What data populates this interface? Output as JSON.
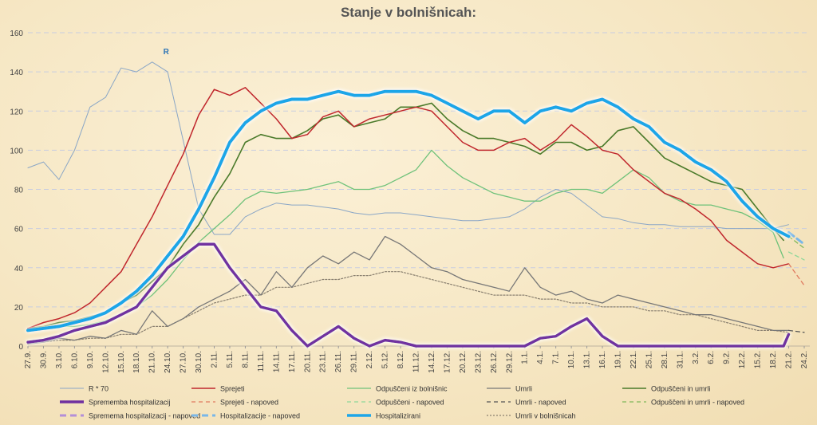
{
  "chart_data": {
    "type": "line",
    "title": "Stanje v bolnišnicah:",
    "ylim": [
      0,
      160
    ],
    "yticks": [
      0,
      20,
      40,
      60,
      80,
      100,
      120,
      140,
      160
    ],
    "x_start": "2020-09-27",
    "x_tick_labels": [
      "27.9.",
      "30.9.",
      "3.10.",
      "6.10.",
      "9.10.",
      "12.10.",
      "15.10.",
      "18.10.",
      "21.10.",
      "24.10.",
      "27.10.",
      "30.10.",
      "2.11.",
      "5.11.",
      "8.11.",
      "11.11.",
      "14.11.",
      "17.11.",
      "20.11.",
      "23.11.",
      "26.11.",
      "29.11.",
      "2.12.",
      "5.12.",
      "8.12.",
      "11.12.",
      "14.12.",
      "17.12.",
      "20.12.",
      "23.12.",
      "26.12.",
      "29.12.",
      "1.1.",
      "4.1.",
      "7.1.",
      "10.1.",
      "13.1.",
      "16.1.",
      "19.1.",
      "22.1.",
      "25.1.",
      "28.1.",
      "31.1.",
      "3.2.",
      "6.2.",
      "9.2.",
      "12.2.",
      "15.2.",
      "18.2.",
      "21.2.",
      "24.2."
    ],
    "annotation": "R",
    "grid": true,
    "legend_placement": "bottom",
    "series": [
      {
        "name": "R * 70",
        "color": "#8aa6c6",
        "width": 1,
        "dash": "",
        "x": [
          "2020-09-27",
          "2020-09-30",
          "2020-10-03",
          "2020-10-06",
          "2020-10-09",
          "2020-10-12",
          "2020-10-15",
          "2020-10-18",
          "2020-10-21",
          "2020-10-24",
          "2020-10-27",
          "2020-10-30",
          "2020-11-02",
          "2020-11-05",
          "2020-11-08",
          "2020-11-11",
          "2020-11-14",
          "2020-11-17",
          "2020-11-20",
          "2020-11-23",
          "2020-11-26",
          "2020-11-29",
          "2020-12-02",
          "2020-12-05",
          "2020-12-08",
          "2020-12-11",
          "2020-12-14",
          "2020-12-17",
          "2020-12-20",
          "2020-12-23",
          "2020-12-26",
          "2020-12-29",
          "2021-01-01",
          "2021-01-04",
          "2021-01-07",
          "2021-01-10",
          "2021-01-13",
          "2021-01-16",
          "2021-01-19",
          "2021-01-22",
          "2021-01-25",
          "2021-01-28",
          "2021-01-31",
          "2021-02-03",
          "2021-02-06",
          "2021-02-09",
          "2021-02-12",
          "2021-02-15",
          "2021-02-18",
          "2021-02-21"
        ],
        "values": [
          91,
          94,
          85,
          100,
          122,
          127,
          142,
          140,
          145,
          140,
          105,
          70,
          57,
          57,
          66,
          70,
          73,
          72,
          72,
          71,
          70,
          68,
          67,
          68,
          68,
          67,
          66,
          65,
          64,
          64,
          65,
          66,
          70,
          76,
          80,
          78,
          72,
          66,
          65,
          63,
          62,
          62,
          61,
          61,
          61,
          60,
          60,
          60,
          60,
          62
        ]
      },
      {
        "name": "Sprejeti",
        "color": "#c0272d",
        "width": 1.5,
        "dash": "",
        "x": [
          "2020-09-27",
          "2020-09-30",
          "2020-10-03",
          "2020-10-06",
          "2020-10-09",
          "2020-10-12",
          "2020-10-15",
          "2020-10-18",
          "2020-10-21",
          "2020-10-24",
          "2020-10-27",
          "2020-10-30",
          "2020-11-02",
          "2020-11-05",
          "2020-11-08",
          "2020-11-11",
          "2020-11-14",
          "2020-11-17",
          "2020-11-20",
          "2020-11-23",
          "2020-11-26",
          "2020-11-29",
          "2020-12-02",
          "2020-12-05",
          "2020-12-08",
          "2020-12-11",
          "2020-12-14",
          "2020-12-17",
          "2020-12-20",
          "2020-12-23",
          "2020-12-26",
          "2020-12-29",
          "2021-01-01",
          "2021-01-04",
          "2021-01-07",
          "2021-01-10",
          "2021-01-13",
          "2021-01-16",
          "2021-01-19",
          "2021-01-22",
          "2021-01-25",
          "2021-01-28",
          "2021-01-31",
          "2021-02-03",
          "2021-02-06",
          "2021-02-09",
          "2021-02-12",
          "2021-02-15",
          "2021-02-18",
          "2021-02-21"
        ],
        "values": [
          9,
          12,
          14,
          17,
          22,
          30,
          38,
          52,
          66,
          82,
          98,
          118,
          131,
          128,
          132,
          124,
          116,
          106,
          108,
          117,
          120,
          112,
          116,
          118,
          120,
          122,
          120,
          112,
          104,
          100,
          100,
          104,
          106,
          100,
          105,
          113,
          107,
          100,
          98,
          90,
          84,
          78,
          75,
          70,
          64,
          54,
          48,
          42,
          40,
          42
        ]
      },
      {
        "name": "Sprejeti - napoved",
        "color": "#e07a5f",
        "width": 1.3,
        "dash": "5,4",
        "x": [
          "2021-02-21",
          "2021-02-24"
        ],
        "values": [
          42,
          31
        ]
      },
      {
        "name": "Odpuščeni iz bolnišnic",
        "color": "#6fc27a",
        "width": 1.3,
        "dash": "",
        "x": [
          "2020-09-27",
          "2020-09-30",
          "2020-10-03",
          "2020-10-06",
          "2020-10-09",
          "2020-10-12",
          "2020-10-15",
          "2020-10-18",
          "2020-10-21",
          "2020-10-24",
          "2020-10-27",
          "2020-10-30",
          "2020-11-02",
          "2020-11-05",
          "2020-11-08",
          "2020-11-11",
          "2020-11-14",
          "2020-11-17",
          "2020-11-20",
          "2020-11-23",
          "2020-11-26",
          "2020-11-29",
          "2020-12-02",
          "2020-12-05",
          "2020-12-08",
          "2020-12-11",
          "2020-12-14",
          "2020-12-17",
          "2020-12-20",
          "2020-12-23",
          "2020-12-26",
          "2020-12-29",
          "2021-01-01",
          "2021-01-04",
          "2021-01-07",
          "2021-01-10",
          "2021-01-13",
          "2021-01-16",
          "2021-01-19",
          "2021-01-22",
          "2021-01-25",
          "2021-01-28",
          "2021-01-31",
          "2021-02-03",
          "2021-02-06",
          "2021-02-09",
          "2021-02-12",
          "2021-02-15",
          "2021-02-18",
          "2021-02-20"
        ],
        "values": [
          8,
          9,
          10,
          10,
          11,
          13,
          16,
          20,
          26,
          34,
          44,
          53,
          60,
          67,
          75,
          79,
          78,
          79,
          80,
          82,
          84,
          80,
          80,
          82,
          86,
          90,
          100,
          92,
          86,
          82,
          78,
          76,
          74,
          74,
          78,
          80,
          80,
          78,
          84,
          90,
          86,
          78,
          74,
          72,
          72,
          70,
          68,
          64,
          58,
          45
        ]
      },
      {
        "name": "Odpuščeni - napoved",
        "color": "#8fd89a",
        "width": 1.3,
        "dash": "5,4",
        "x": [
          "2021-02-21",
          "2021-02-24"
        ],
        "values": [
          48,
          44
        ]
      },
      {
        "name": "Umrli",
        "color": "#777777",
        "width": 1.3,
        "dash": "",
        "x": [
          "2020-09-27",
          "2020-09-30",
          "2020-10-03",
          "2020-10-06",
          "2020-10-09",
          "2020-10-12",
          "2020-10-15",
          "2020-10-18",
          "2020-10-21",
          "2020-10-24",
          "2020-10-27",
          "2020-10-30",
          "2020-11-02",
          "2020-11-05",
          "2020-11-08",
          "2020-11-11",
          "2020-11-14",
          "2020-11-17",
          "2020-11-20",
          "2020-11-23",
          "2020-11-26",
          "2020-11-29",
          "2020-12-02",
          "2020-12-05",
          "2020-12-08",
          "2020-12-11",
          "2020-12-14",
          "2020-12-17",
          "2020-12-20",
          "2020-12-23",
          "2020-12-26",
          "2020-12-29",
          "2021-01-01",
          "2021-01-04",
          "2021-01-07",
          "2021-01-10",
          "2021-01-13",
          "2021-01-16",
          "2021-01-19",
          "2021-01-22",
          "2021-01-25",
          "2021-01-28",
          "2021-01-31",
          "2021-02-03",
          "2021-02-06",
          "2021-02-09",
          "2021-02-12",
          "2021-02-15",
          "2021-02-18",
          "2021-02-21"
        ],
        "values": [
          1,
          2,
          4,
          3,
          5,
          4,
          8,
          6,
          18,
          10,
          14,
          20,
          24,
          28,
          34,
          26,
          38,
          30,
          40,
          46,
          42,
          48,
          44,
          56,
          52,
          46,
          40,
          38,
          34,
          32,
          30,
          28,
          40,
          30,
          26,
          28,
          24,
          22,
          26,
          24,
          22,
          20,
          18,
          16,
          16,
          14,
          12,
          10,
          8,
          8
        ]
      },
      {
        "name": "Umrli - napoved",
        "color": "#555555",
        "width": 1.3,
        "dash": "5,4",
        "x": [
          "2021-02-21",
          "2021-02-24"
        ],
        "values": [
          8,
          7
        ]
      },
      {
        "name": "Odpuščeni in umrli",
        "color": "#4a7a2a",
        "width": 1.6,
        "dash": "",
        "x": [
          "2020-09-27",
          "2020-09-30",
          "2020-10-03",
          "2020-10-06",
          "2020-10-09",
          "2020-10-12",
          "2020-10-15",
          "2020-10-18",
          "2020-10-21",
          "2020-10-24",
          "2020-10-27",
          "2020-10-30",
          "2020-11-02",
          "2020-11-05",
          "2020-11-08",
          "2020-11-11",
          "2020-11-14",
          "2020-11-17",
          "2020-11-20",
          "2020-11-23",
          "2020-11-26",
          "2020-11-29",
          "2020-12-02",
          "2020-12-05",
          "2020-12-08",
          "2020-12-11",
          "2020-12-14",
          "2020-12-17",
          "2020-12-20",
          "2020-12-23",
          "2020-12-26",
          "2020-12-29",
          "2021-01-01",
          "2021-01-04",
          "2021-01-07",
          "2021-01-10",
          "2021-01-13",
          "2021-01-16",
          "2021-01-19",
          "2021-01-22",
          "2021-01-25",
          "2021-01-28",
          "2021-01-31",
          "2021-02-03",
          "2021-02-06",
          "2021-02-09",
          "2021-02-12",
          "2021-02-15",
          "2021-02-18",
          "2021-02-20"
        ],
        "values": [
          9,
          10,
          12,
          13,
          15,
          17,
          22,
          26,
          33,
          40,
          52,
          62,
          76,
          88,
          104,
          108,
          106,
          106,
          110,
          116,
          118,
          112,
          114,
          116,
          122,
          122,
          124,
          116,
          110,
          106,
          106,
          104,
          102,
          98,
          104,
          104,
          100,
          102,
          110,
          112,
          104,
          96,
          92,
          88,
          84,
          82,
          80,
          70,
          60,
          54
        ]
      },
      {
        "name": "Odpuščeni in umrli - napoved",
        "color": "#7fb85a",
        "width": 1.3,
        "dash": "5,4",
        "x": [
          "2021-02-21",
          "2021-02-24"
        ],
        "values": [
          56,
          50
        ]
      },
      {
        "name": "Sprememba hospitalizacij",
        "color": "#7030a0",
        "width": 3.5,
        "dash": "",
        "x": [
          "2020-09-27",
          "2020-09-30",
          "2020-10-03",
          "2020-10-06",
          "2020-10-09",
          "2020-10-12",
          "2020-10-15",
          "2020-10-18",
          "2020-10-21",
          "2020-10-24",
          "2020-10-27",
          "2020-10-30",
          "2020-11-02",
          "2020-11-05",
          "2020-11-08",
          "2020-11-11",
          "2020-11-14",
          "2020-11-17",
          "2020-11-20",
          "2020-11-23",
          "2020-11-26",
          "2020-11-29",
          "2020-12-02",
          "2020-12-05",
          "2020-12-08",
          "2020-12-11",
          "2020-12-14",
          "2020-12-17",
          "2020-12-20",
          "2020-12-23",
          "2020-12-26",
          "2020-12-29",
          "2021-01-01",
          "2021-01-04",
          "2021-01-07",
          "2021-01-10",
          "2021-01-13",
          "2021-01-16",
          "2021-01-19",
          "2021-01-22",
          "2021-01-25",
          "2021-01-28",
          "2021-01-31",
          "2021-02-03",
          "2021-02-06",
          "2021-02-09",
          "2021-02-12",
          "2021-02-15",
          "2021-02-18",
          "2021-02-20",
          "2021-02-21"
        ],
        "values": [
          2,
          3,
          5,
          8,
          10,
          12,
          16,
          20,
          30,
          40,
          46,
          52,
          52,
          40,
          30,
          20,
          18,
          8,
          0,
          5,
          10,
          4,
          0,
          3,
          2,
          0,
          0,
          0,
          0,
          0,
          0,
          0,
          0,
          4,
          5,
          10,
          14,
          5,
          0,
          0,
          0,
          0,
          0,
          0,
          0,
          0,
          0,
          0,
          0,
          0,
          6
        ]
      },
      {
        "name": "Spremema hospitalizacij - napoved",
        "color": "#b48fd8",
        "width": 3,
        "dash": "8,5",
        "x": [],
        "values": []
      },
      {
        "name": "Hospitalizacije - napoved",
        "color": "#79b7e8",
        "width": 3,
        "dash": "8,5",
        "x": [
          "2021-02-21",
          "2021-02-24"
        ],
        "values": [
          58,
          52
        ]
      },
      {
        "name": "Hospitalizirani",
        "color": "#1ea6e8",
        "width": 4,
        "dash": "",
        "x": [
          "2020-09-27",
          "2020-09-30",
          "2020-10-03",
          "2020-10-06",
          "2020-10-09",
          "2020-10-12",
          "2020-10-15",
          "2020-10-18",
          "2020-10-21",
          "2020-10-24",
          "2020-10-27",
          "2020-10-30",
          "2020-11-02",
          "2020-11-05",
          "2020-11-08",
          "2020-11-11",
          "2020-11-14",
          "2020-11-17",
          "2020-11-20",
          "2020-11-23",
          "2020-11-26",
          "2020-11-29",
          "2020-12-02",
          "2020-12-05",
          "2020-12-08",
          "2020-12-11",
          "2020-12-14",
          "2020-12-17",
          "2020-12-20",
          "2020-12-23",
          "2020-12-26",
          "2020-12-29",
          "2021-01-01",
          "2021-01-04",
          "2021-01-07",
          "2021-01-10",
          "2021-01-13",
          "2021-01-16",
          "2021-01-19",
          "2021-01-22",
          "2021-01-25",
          "2021-01-28",
          "2021-01-31",
          "2021-02-03",
          "2021-02-06",
          "2021-02-09",
          "2021-02-12",
          "2021-02-15",
          "2021-02-18",
          "2021-02-21"
        ],
        "values": [
          8,
          9,
          10,
          12,
          14,
          17,
          22,
          28,
          36,
          46,
          56,
          70,
          86,
          104,
          114,
          120,
          124,
          126,
          126,
          128,
          130,
          128,
          128,
          130,
          130,
          130,
          128,
          124,
          120,
          116,
          120,
          120,
          114,
          120,
          122,
          120,
          124,
          126,
          122,
          116,
          112,
          104,
          100,
          94,
          90,
          84,
          74,
          66,
          60,
          56
        ]
      },
      {
        "name": "Umrli v bolnišnicah",
        "color": "#8a8070",
        "width": 1.2,
        "dash": "2,2",
        "x": [
          "2020-09-27",
          "2020-09-30",
          "2020-10-03",
          "2020-10-06",
          "2020-10-09",
          "2020-10-12",
          "2020-10-15",
          "2020-10-18",
          "2020-10-21",
          "2020-10-24",
          "2020-10-27",
          "2020-10-30",
          "2020-11-02",
          "2020-11-05",
          "2020-11-08",
          "2020-11-11",
          "2020-11-14",
          "2020-11-17",
          "2020-11-20",
          "2020-11-23",
          "2020-11-26",
          "2020-11-29",
          "2020-12-02",
          "2020-12-05",
          "2020-12-08",
          "2020-12-11",
          "2020-12-14",
          "2020-12-17",
          "2020-12-20",
          "2020-12-23",
          "2020-12-26",
          "2020-12-29",
          "2021-01-01",
          "2021-01-04",
          "2021-01-07",
          "2021-01-10",
          "2021-01-13",
          "2021-01-16",
          "2021-01-19",
          "2021-01-22",
          "2021-01-25",
          "2021-01-28",
          "2021-01-31",
          "2021-02-03",
          "2021-02-06",
          "2021-02-09",
          "2021-02-12",
          "2021-02-15",
          "2021-02-18",
          "2021-02-21"
        ],
        "values": [
          1,
          2,
          3,
          3,
          4,
          4,
          6,
          6,
          10,
          10,
          14,
          18,
          22,
          24,
          26,
          26,
          30,
          30,
          32,
          34,
          34,
          36,
          36,
          38,
          38,
          36,
          34,
          32,
          30,
          28,
          26,
          26,
          26,
          24,
          24,
          22,
          22,
          20,
          20,
          20,
          18,
          18,
          16,
          16,
          14,
          12,
          10,
          8,
          8,
          7
        ]
      }
    ]
  }
}
